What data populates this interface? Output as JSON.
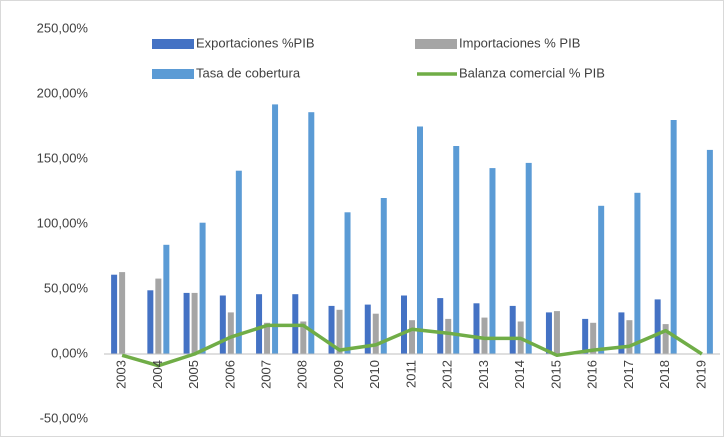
{
  "chart_data": {
    "type": "bar",
    "categories": [
      "2003",
      "2004",
      "2005",
      "2006",
      "2007",
      "2008",
      "2009",
      "2010",
      "2011",
      "2012",
      "2013",
      "2014",
      "2015",
      "2016",
      "2017",
      "2018",
      "2019"
    ],
    "series": [
      {
        "name": "Exportaciones %PIB",
        "color": "#4472c4",
        "values": [
          61,
          49,
          47,
          45,
          46,
          46,
          37,
          38,
          45,
          43,
          39,
          37,
          32,
          27,
          32,
          42,
          null
        ]
      },
      {
        "name": "Importaciones % PIB",
        "color": "#a5a5a5",
        "values": [
          63,
          58,
          47,
          32,
          24,
          25,
          34,
          31,
          26,
          27,
          28,
          25,
          33,
          24,
          26,
          23,
          null
        ]
      },
      {
        "name": "Tasa de cobertura",
        "color": "#5b9bd5",
        "values": [
          null,
          84,
          101,
          141,
          192,
          186,
          109,
          120,
          175,
          160,
          143,
          147,
          null,
          114,
          124,
          180,
          157
        ]
      },
      {
        "name": "Balanza comercial % PIB",
        "color": "#70ad47",
        "type": "line",
        "values": [
          -1,
          -9,
          0,
          13,
          22,
          22,
          3,
          7,
          19,
          16,
          12,
          12,
          -1,
          3,
          6,
          18,
          0
        ]
      }
    ],
    "ylim": [
      -50,
      250
    ],
    "yticks": [
      {
        "value": -50,
        "label": "-50,00%"
      },
      {
        "value": 0,
        "label": "0,00%"
      },
      {
        "value": 50,
        "label": "50,00%"
      },
      {
        "value": 100,
        "label": "100,00%"
      },
      {
        "value": 150,
        "label": "150,00%"
      },
      {
        "value": 200,
        "label": "200,00%"
      },
      {
        "value": 250,
        "label": "250,00%"
      }
    ],
    "grid": false,
    "legend": "top"
  }
}
